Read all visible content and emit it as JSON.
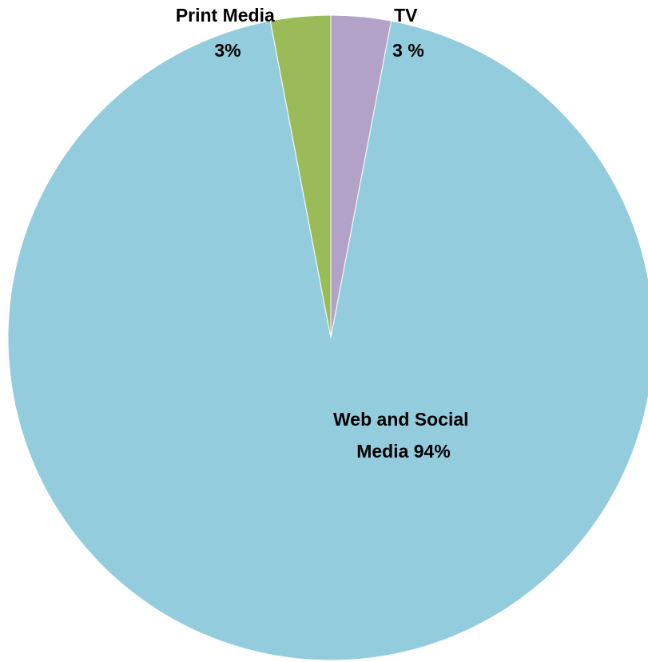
{
  "chart_data": {
    "type": "pie",
    "categories": [
      "TV",
      "Web and Social Media",
      "Print Media"
    ],
    "values": [
      3,
      94,
      3
    ],
    "colors": [
      "#b2a2c7",
      "#93cddd",
      "#9bbb59"
    ],
    "labels": [
      {
        "line1": "TV",
        "line2": "3 %"
      },
      {
        "line1": "Web and Social",
        "line2": "Media  94%"
      },
      {
        "line1": "Print Media",
        "line2": "3%"
      }
    ],
    "legend": "none",
    "start_angle_deg": 0,
    "direction": "clockwise"
  }
}
